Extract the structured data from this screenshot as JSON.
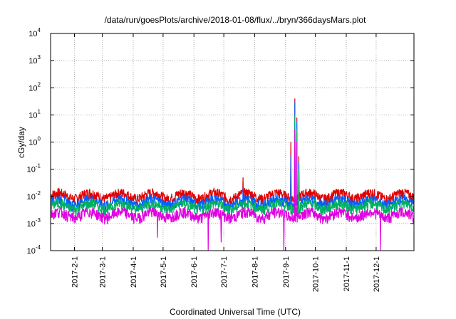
{
  "chart_data": {
    "type": "line",
    "title": "/data/run/goesPlots/archive/2018-01-08/flux/../bryn/366daysMars.plot",
    "xlabel": "Coordinated Universal Time (UTC)",
    "ylabel": "cGy/day",
    "yscale": "log",
    "ylim": [
      0.0001,
      10000
    ],
    "xlim": [
      "2017-01-08",
      "2018-01-08"
    ],
    "grid": true,
    "y_ticks": [
      {
        "base": "10",
        "exp": "-4",
        "value": 0.0001
      },
      {
        "base": "10",
        "exp": "-3",
        "value": 0.001
      },
      {
        "base": "10",
        "exp": "-2",
        "value": 0.01
      },
      {
        "base": "10",
        "exp": "-1",
        "value": 0.1
      },
      {
        "base": "10",
        "exp": "0",
        "value": 1
      },
      {
        "base": "10",
        "exp": "1",
        "value": 10
      },
      {
        "base": "10",
        "exp": "2",
        "value": 100
      },
      {
        "base": "10",
        "exp": "3",
        "value": 1000
      },
      {
        "base": "10",
        "exp": "4",
        "value": 10000
      }
    ],
    "x_ticks": [
      "2017-2-1",
      "2017-3-1",
      "2017-4-1",
      "2017-5-1",
      "2017-6-1",
      "2017-7-1",
      "2017-8-1",
      "2017-9-1",
      "2017-10-1",
      "2017-11-1",
      "2017-12-1"
    ],
    "x_tick_dates": [
      "2017-02-01",
      "2017-03-01",
      "2017-04-01",
      "2017-05-01",
      "2017-06-01",
      "2017-07-01",
      "2017-08-01",
      "2017-09-01",
      "2017-10-01",
      "2017-11-01",
      "2017-12-01"
    ],
    "series": [
      {
        "color": "#e00000",
        "baseline": 0.011,
        "points": [
          [
            "2017-07-20",
            0.05
          ],
          [
            "2017-09-06",
            1.0
          ],
          [
            "2017-09-10",
            40
          ],
          [
            "2017-09-12",
            8
          ],
          [
            "2017-09-14",
            0.3
          ]
        ]
      },
      {
        "color": "#0060ff",
        "baseline": 0.0065,
        "points": [
          [
            "2017-07-20",
            0.02
          ],
          [
            "2017-09-06",
            0.3
          ],
          [
            "2017-09-10",
            30
          ],
          [
            "2017-09-12",
            6
          ],
          [
            "2017-09-14",
            0.2
          ]
        ]
      },
      {
        "color": "#00b060",
        "baseline": 0.0045,
        "points": [
          [
            "2017-09-10",
            10
          ],
          [
            "2017-09-12",
            3
          ],
          [
            "2017-09-14",
            0.1
          ]
        ]
      },
      {
        "color": "#e000e0",
        "baseline": 0.0022,
        "points": [
          [
            "2017-04-25",
            0.0003
          ],
          [
            "2017-06-15",
            0.0001
          ],
          [
            "2017-06-28",
            0.0002
          ],
          [
            "2017-08-30",
            0.0001
          ],
          [
            "2017-09-10",
            3
          ],
          [
            "2017-09-12",
            1
          ],
          [
            "2017-12-05",
            0.0001
          ]
        ]
      }
    ]
  }
}
